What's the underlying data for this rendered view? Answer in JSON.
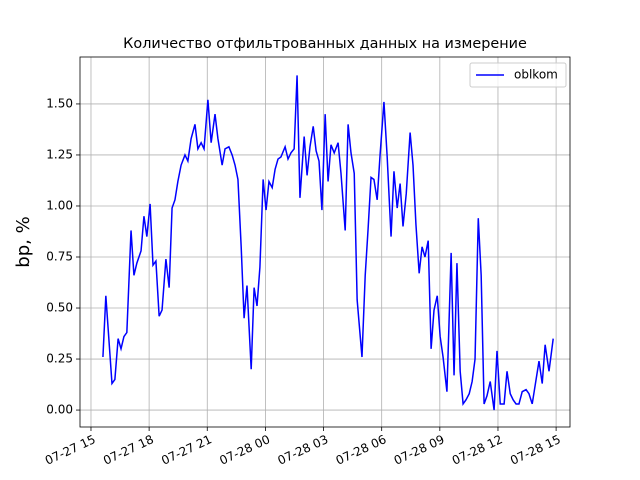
{
  "chart_data": {
    "type": "line",
    "title": "Количество отфильтрованных данных на измерение",
    "y_label": "bp, %",
    "x": [
      "07-27 15:37",
      "07-27 15:46",
      "07-27 16:05",
      "07-27 16:14",
      "07-27 16:24",
      "07-27 16:33",
      "07-27 16:42",
      "07-27 16:51",
      "07-27 17:04",
      "07-27 17:13",
      "07-27 17:22",
      "07-27 17:35",
      "07-27 17:44",
      "07-27 17:53",
      "07-27 18:03",
      "07-27 18:12",
      "07-27 18:21",
      "07-27 18:31",
      "07-27 18:40",
      "07-27 18:52",
      "07-27 19:02",
      "07-27 19:11",
      "07-27 19:20",
      "07-27 19:29",
      "07-27 19:39",
      "07-27 19:51",
      "07-27 20:00",
      "07-27 20:10",
      "07-27 20:22",
      "07-27 20:31",
      "07-27 20:41",
      "07-27 20:50",
      "07-27 21:02",
      "07-27 21:12",
      "07-27 21:24",
      "07-27 21:33",
      "07-27 21:46",
      "07-27 21:55",
      "07-27 22:07",
      "07-27 22:17",
      "07-27 22:26",
      "07-27 22:35",
      "07-27 22:45",
      "07-27 22:54",
      "07-27 23:03",
      "07-27 23:16",
      "07-27 23:25",
      "07-27 23:34",
      "07-27 23:43",
      "07-27 23:53",
      "07-28 00:02",
      "07-28 00:11",
      "07-28 00:21",
      "07-28 00:30",
      "07-28 00:39",
      "07-28 00:48",
      "07-28 01:01",
      "07-28 01:10",
      "07-28 01:19",
      "07-28 01:29",
      "07-28 01:38",
      "07-28 01:47",
      "07-28 02:00",
      "07-28 02:09",
      "07-28 02:18",
      "07-28 02:28",
      "07-28 02:37",
      "07-28 02:46",
      "07-28 02:55",
      "07-28 03:05",
      "07-28 03:14",
      "07-28 03:23",
      "07-28 03:33",
      "07-28 03:45",
      "07-28 03:54",
      "07-28 04:07",
      "07-28 04:16",
      "07-28 04:25",
      "07-28 04:35",
      "07-28 04:44",
      "07-28 04:59",
      "07-28 05:09",
      "07-28 05:18",
      "07-28 05:27",
      "07-28 05:36",
      "07-28 05:46",
      "07-28 05:55",
      "07-28 06:07",
      "07-28 06:17",
      "07-28 06:29",
      "07-28 06:38",
      "07-28 06:48",
      "07-28 06:57",
      "07-28 07:06",
      "07-28 07:16",
      "07-28 07:28",
      "07-28 07:37",
      "07-28 07:46",
      "07-28 07:56",
      "07-28 08:05",
      "07-28 08:14",
      "07-28 08:24",
      "07-28 08:33",
      "07-28 08:42",
      "07-28 08:52",
      "07-28 09:01",
      "07-28 09:10",
      "07-28 09:22",
      "07-28 09:35",
      "07-28 09:44",
      "07-28 09:53",
      "07-28 10:03",
      "07-28 10:12",
      "07-28 10:21",
      "07-28 10:31",
      "07-28 10:40",
      "07-28 10:49",
      "07-28 10:59",
      "07-28 11:08",
      "07-28 11:17",
      "07-28 11:26",
      "07-28 11:36",
      "07-28 11:48",
      "07-28 11:57",
      "07-28 12:07",
      "07-28 12:19",
      "07-28 12:28",
      "07-28 12:38",
      "07-28 12:47",
      "07-28 12:56",
      "07-28 13:05",
      "07-28 13:15",
      "07-28 13:27",
      "07-28 13:36",
      "07-28 13:46",
      "07-28 13:55",
      "07-28 14:07",
      "07-28 14:17",
      "07-28 14:26",
      "07-28 14:38",
      "07-28 14:51"
    ],
    "series": [
      {
        "name": "oblkom",
        "color": "#0000ff",
        "values": [
          0.26,
          0.56,
          0.13,
          0.15,
          0.35,
          0.3,
          0.36,
          0.38,
          0.88,
          0.66,
          0.72,
          0.78,
          0.95,
          0.85,
          1.01,
          0.71,
          0.73,
          0.46,
          0.49,
          0.74,
          0.6,
          0.99,
          1.03,
          1.12,
          1.2,
          1.25,
          1.22,
          1.33,
          1.4,
          1.28,
          1.31,
          1.28,
          1.52,
          1.31,
          1.45,
          1.33,
          1.2,
          1.28,
          1.29,
          1.25,
          1.2,
          1.13,
          0.8,
          0.45,
          0.61,
          0.2,
          0.6,
          0.51,
          0.7,
          1.13,
          0.98,
          1.12,
          1.09,
          1.18,
          1.23,
          1.24,
          1.29,
          1.23,
          1.26,
          1.28,
          1.64,
          1.04,
          1.34,
          1.15,
          1.29,
          1.39,
          1.27,
          1.22,
          0.98,
          1.45,
          1.12,
          1.3,
          1.26,
          1.31,
          1.16,
          0.88,
          1.4,
          1.26,
          1.16,
          0.54,
          0.26,
          0.66,
          0.89,
          1.14,
          1.13,
          1.03,
          1.25,
          1.51,
          1.24,
          0.85,
          1.17,
          0.99,
          1.11,
          0.9,
          1.06,
          1.36,
          1.2,
          0.91,
          0.67,
          0.8,
          0.75,
          0.83,
          0.3,
          0.49,
          0.56,
          0.36,
          0.26,
          0.09,
          0.77,
          0.17,
          0.72,
          0.19,
          0.03,
          0.05,
          0.08,
          0.14,
          0.25,
          0.94,
          0.66,
          0.03,
          0.07,
          0.14,
          0.0,
          0.29,
          0.03,
          0.03,
          0.19,
          0.08,
          0.05,
          0.03,
          0.03,
          0.09,
          0.1,
          0.08,
          0.03,
          0.12,
          0.24,
          0.13,
          0.32,
          0.19,
          0.35
        ]
      }
    ],
    "xlim": [
      "07-27 14:26",
      "07-28 15:43"
    ],
    "xticks": [
      {
        "value": "07-27 15:00",
        "label": "07-27 15"
      },
      {
        "value": "07-27 18:00",
        "label": "07-27 18"
      },
      {
        "value": "07-27 21:00",
        "label": "07-27 21"
      },
      {
        "value": "07-28 00:00",
        "label": "07-28 00"
      },
      {
        "value": "07-28 03:00",
        "label": "07-28 03"
      },
      {
        "value": "07-28 06:00",
        "label": "07-28 06"
      },
      {
        "value": "07-28 09:00",
        "label": "07-28 09"
      },
      {
        "value": "07-28 12:00",
        "label": "07-28 12"
      },
      {
        "value": "07-28 15:00",
        "label": "07-28 15"
      }
    ],
    "ylim": [
      -0.083,
      1.73
    ],
    "yticks": [
      {
        "value": 0,
        "label": "0.00"
      },
      {
        "value": 0.25,
        "label": "0.25"
      },
      {
        "value": 0.5,
        "label": "0.50"
      },
      {
        "value": 0.75,
        "label": "0.75"
      },
      {
        "value": 1,
        "label": "1.00"
      },
      {
        "value": 1.25,
        "label": "1.25"
      },
      {
        "value": 1.5,
        "label": "1.50"
      }
    ],
    "grid": true,
    "legend": "upper right"
  }
}
